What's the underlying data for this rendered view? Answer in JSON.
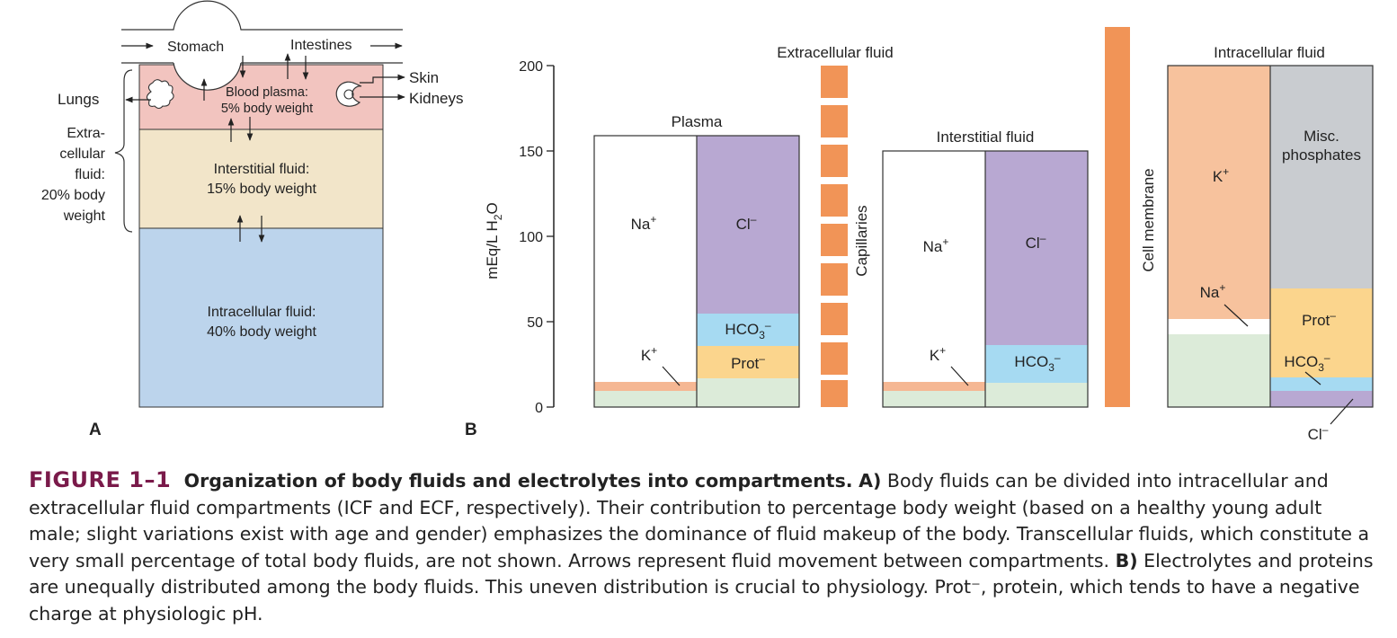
{
  "panel_a": {
    "panel_letter": "A",
    "stomach": "Stomach",
    "intestines": "Intestines",
    "lungs": "Lungs",
    "skin": "Skin",
    "kidneys": "Kidneys",
    "plasma_line1": "Blood plasma:",
    "plasma_line2": "5% body weight",
    "interstitial_line1": "Interstitial fluid:",
    "interstitial_line2": "15% body weight",
    "intracellular_line1": "Intracellular fluid:",
    "intracellular_line2": "40% body weight",
    "ecf_label": [
      "Extra-",
      "cellular",
      "fluid:",
      "20% body",
      "weight"
    ]
  },
  "panel_b": {
    "panel_letter": "B",
    "extracellular_title": "Extracellular fluid",
    "intracellular_title": "Intracellular fluid",
    "plasma_title": "Plasma",
    "interstitial_title": "Interstitial fluid",
    "capillaries": "Capillaries",
    "cell_membrane": "Cell membrane",
    "ylabel_main": "mEq/L H",
    "ylabel_sub": "2",
    "ylabel_end": "O",
    "ticks": [
      "200",
      "150",
      "100",
      "50",
      "0"
    ]
  },
  "labels": {
    "na": "Na",
    "k": "K",
    "cl": "Cl",
    "hco3": "HCO",
    "hco3_sub": "3",
    "prot": "Prot",
    "plus": "+",
    "minus": "–",
    "misc1": "Misc.",
    "misc2": "phosphates"
  },
  "colors": {
    "plasma_bg": "#f2c4bf",
    "interstitial_bg": "#f2e5c9",
    "intracellular_bg": "#bcd4ec",
    "purple": "#b8a8d2",
    "blue": "#a6daf2",
    "yellow": "#fbd58d",
    "green": "#dcebd9",
    "salmon": "#f5b793",
    "peach": "#f7c29d",
    "gray": "#c9ccd0",
    "orange": "#f19457",
    "fig_label": "#7a1a4a"
  },
  "caption": {
    "figure_label": "FIGURE 1–1",
    "title": "Organization of body fluids and electrolytes into compartments.",
    "a_marker": "A)",
    "text_a": "Body fluids can be divided into intracellular and extracellular fluid compartments (ICF and ECF, respectively). Their contribution to percentage body weight (based on a healthy young adult male; slight variations exist with age and gender) emphasizes the dominance of fluid makeup of the body. Transcellular fluids, which constitute a very small percentage of total body fluids, are not shown. Arrows represent fluid movement between compartments.",
    "b_marker": "B)",
    "text_b": "Electrolytes and proteins are unequally distributed among the body fluids. This uneven distribution is crucial to physiology. Prot⁻, protein, which tends to have a negative charge at physiologic pH."
  }
}
